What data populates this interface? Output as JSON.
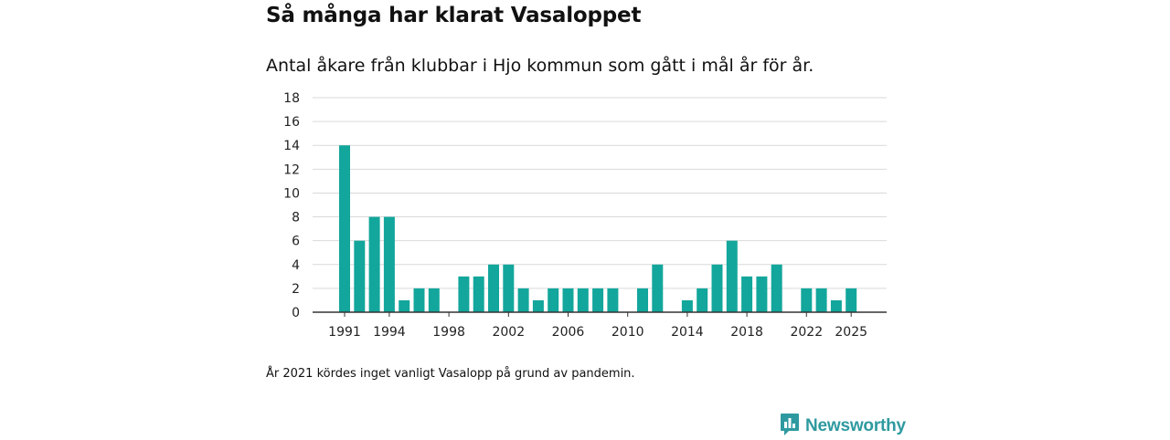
{
  "header": {
    "title": "Så många har klarat Vasaloppet",
    "subtitle": "Antal åkare från klubbar i Hjo kommun som gått i mål år för år."
  },
  "footer": {
    "note": "År 2021 kördes inget vanligt Vasalopp på grund av pandemin.",
    "brand": "Newsworthy"
  },
  "colors": {
    "bar": "#13a69c",
    "grid": "#d9d9d9",
    "axis": "#333333",
    "brand": "#2e9aa0"
  },
  "chart_data": {
    "type": "bar",
    "title": "Så många har klarat Vasaloppet",
    "subtitle": "Antal åkare från klubbar i Hjo kommun som gått i mål år för år.",
    "xlabel": "",
    "ylabel": "",
    "ylim": [
      0,
      18
    ],
    "yticks": [
      0,
      2,
      4,
      6,
      8,
      10,
      12,
      14,
      16,
      18
    ],
    "xticks": [
      1991,
      1994,
      1998,
      2002,
      2006,
      2010,
      2014,
      2018,
      2022,
      2025
    ],
    "grid": true,
    "categories": [
      1991,
      1992,
      1993,
      1994,
      1995,
      1996,
      1997,
      1998,
      1999,
      2000,
      2001,
      2002,
      2003,
      2004,
      2005,
      2006,
      2007,
      2008,
      2009,
      2010,
      2011,
      2012,
      2013,
      2014,
      2015,
      2016,
      2017,
      2018,
      2019,
      2020,
      2021,
      2022,
      2023,
      2024,
      2025
    ],
    "values": [
      14,
      6,
      8,
      8,
      1,
      2,
      2,
      0,
      3,
      3,
      4,
      4,
      2,
      1,
      2,
      2,
      2,
      2,
      2,
      0,
      2,
      4,
      0,
      1,
      2,
      4,
      6,
      3,
      3,
      4,
      0,
      2,
      2,
      1,
      2
    ]
  }
}
